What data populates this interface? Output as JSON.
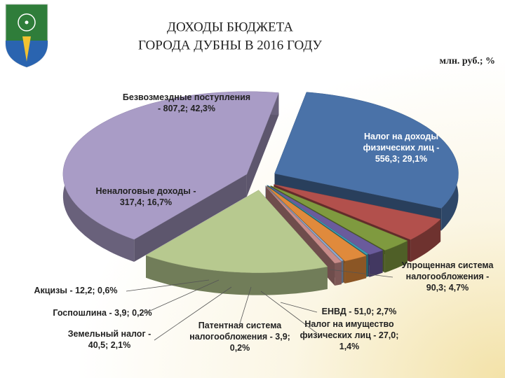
{
  "chart_data": {
    "type": "pie",
    "title": [
      "ДОХОДЫ БЮДЖЕТА",
      "ГОРОДА ДУБНЫ В 2016 ГОДУ"
    ],
    "units": "млн. руб.; %",
    "value_labels": [
      "Налог на доходы физических лиц - 556,3; 29,1%",
      "Упрощенная система налогообложения - 90,3; 4,7%",
      "ЕНВД - 51,0; 2,7%",
      "Налог на имущество физических лиц - 27,0; 1,4%",
      "Патентная система налогообложения - 3,9; 0,2%",
      "Земельный налог - 40,5; 2,1%",
      "Госпошлина - 3,9; 0,2%",
      "Акцизы - 12,2; 0,6%",
      "Неналоговые доходы - 317,4; 16,7%",
      "Безвозмездные поступления - 807,2; 42,3%"
    ],
    "values": [
      556.3,
      90.3,
      51.0,
      27.0,
      3.9,
      40.5,
      3.9,
      12.2,
      317.4,
      807.2
    ],
    "colors": [
      "#4a72a8",
      "#b2504c",
      "#7f9a3f",
      "#6a5b9c",
      "#3c9cb0",
      "#e08a3c",
      "#8eaad0",
      "#c98c8a",
      "#b7c98f",
      "#a99cc6"
    ]
  }
}
